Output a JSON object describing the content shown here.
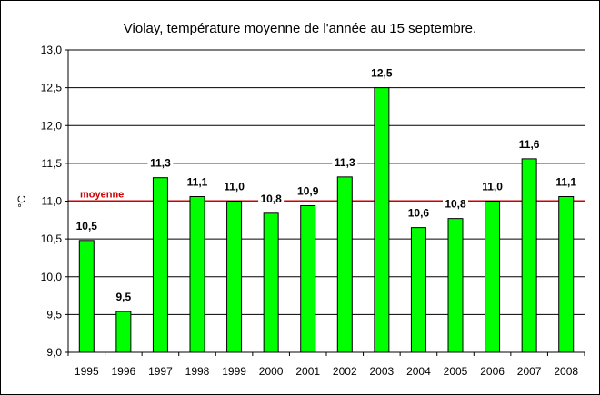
{
  "chart_data": {
    "type": "bar",
    "title": "Violay, température moyenne de l'année au 15 septembre.",
    "ylabel": "°C",
    "xlabel": "",
    "categories": [
      "1995",
      "1996",
      "1997",
      "1998",
      "1999",
      "2000",
      "2001",
      "2002",
      "2003",
      "2004",
      "2005",
      "2006",
      "2007",
      "2008"
    ],
    "values": [
      10.48,
      9.54,
      11.31,
      11.06,
      11.0,
      10.84,
      10.94,
      11.32,
      12.5,
      10.65,
      10.77,
      11.0,
      11.56,
      11.06
    ],
    "data_labels": [
      "10,5",
      "9,5",
      "11,3",
      "11,1",
      "11,0",
      "10,8",
      "10,9",
      "11,3",
      "12,5",
      "10,6",
      "10,8",
      "11,0",
      "11,6",
      "11,1"
    ],
    "ylim": [
      9.0,
      13.0
    ],
    "yticks": [
      "9,0",
      "9,5",
      "10,0",
      "10,5",
      "11,0",
      "11,5",
      "12,0",
      "12,5",
      "13,0"
    ],
    "grid": true,
    "bar_color": "#00ff00",
    "reference_line": {
      "label": "moyenne",
      "value": 11.0,
      "color": "#cc0000"
    }
  }
}
